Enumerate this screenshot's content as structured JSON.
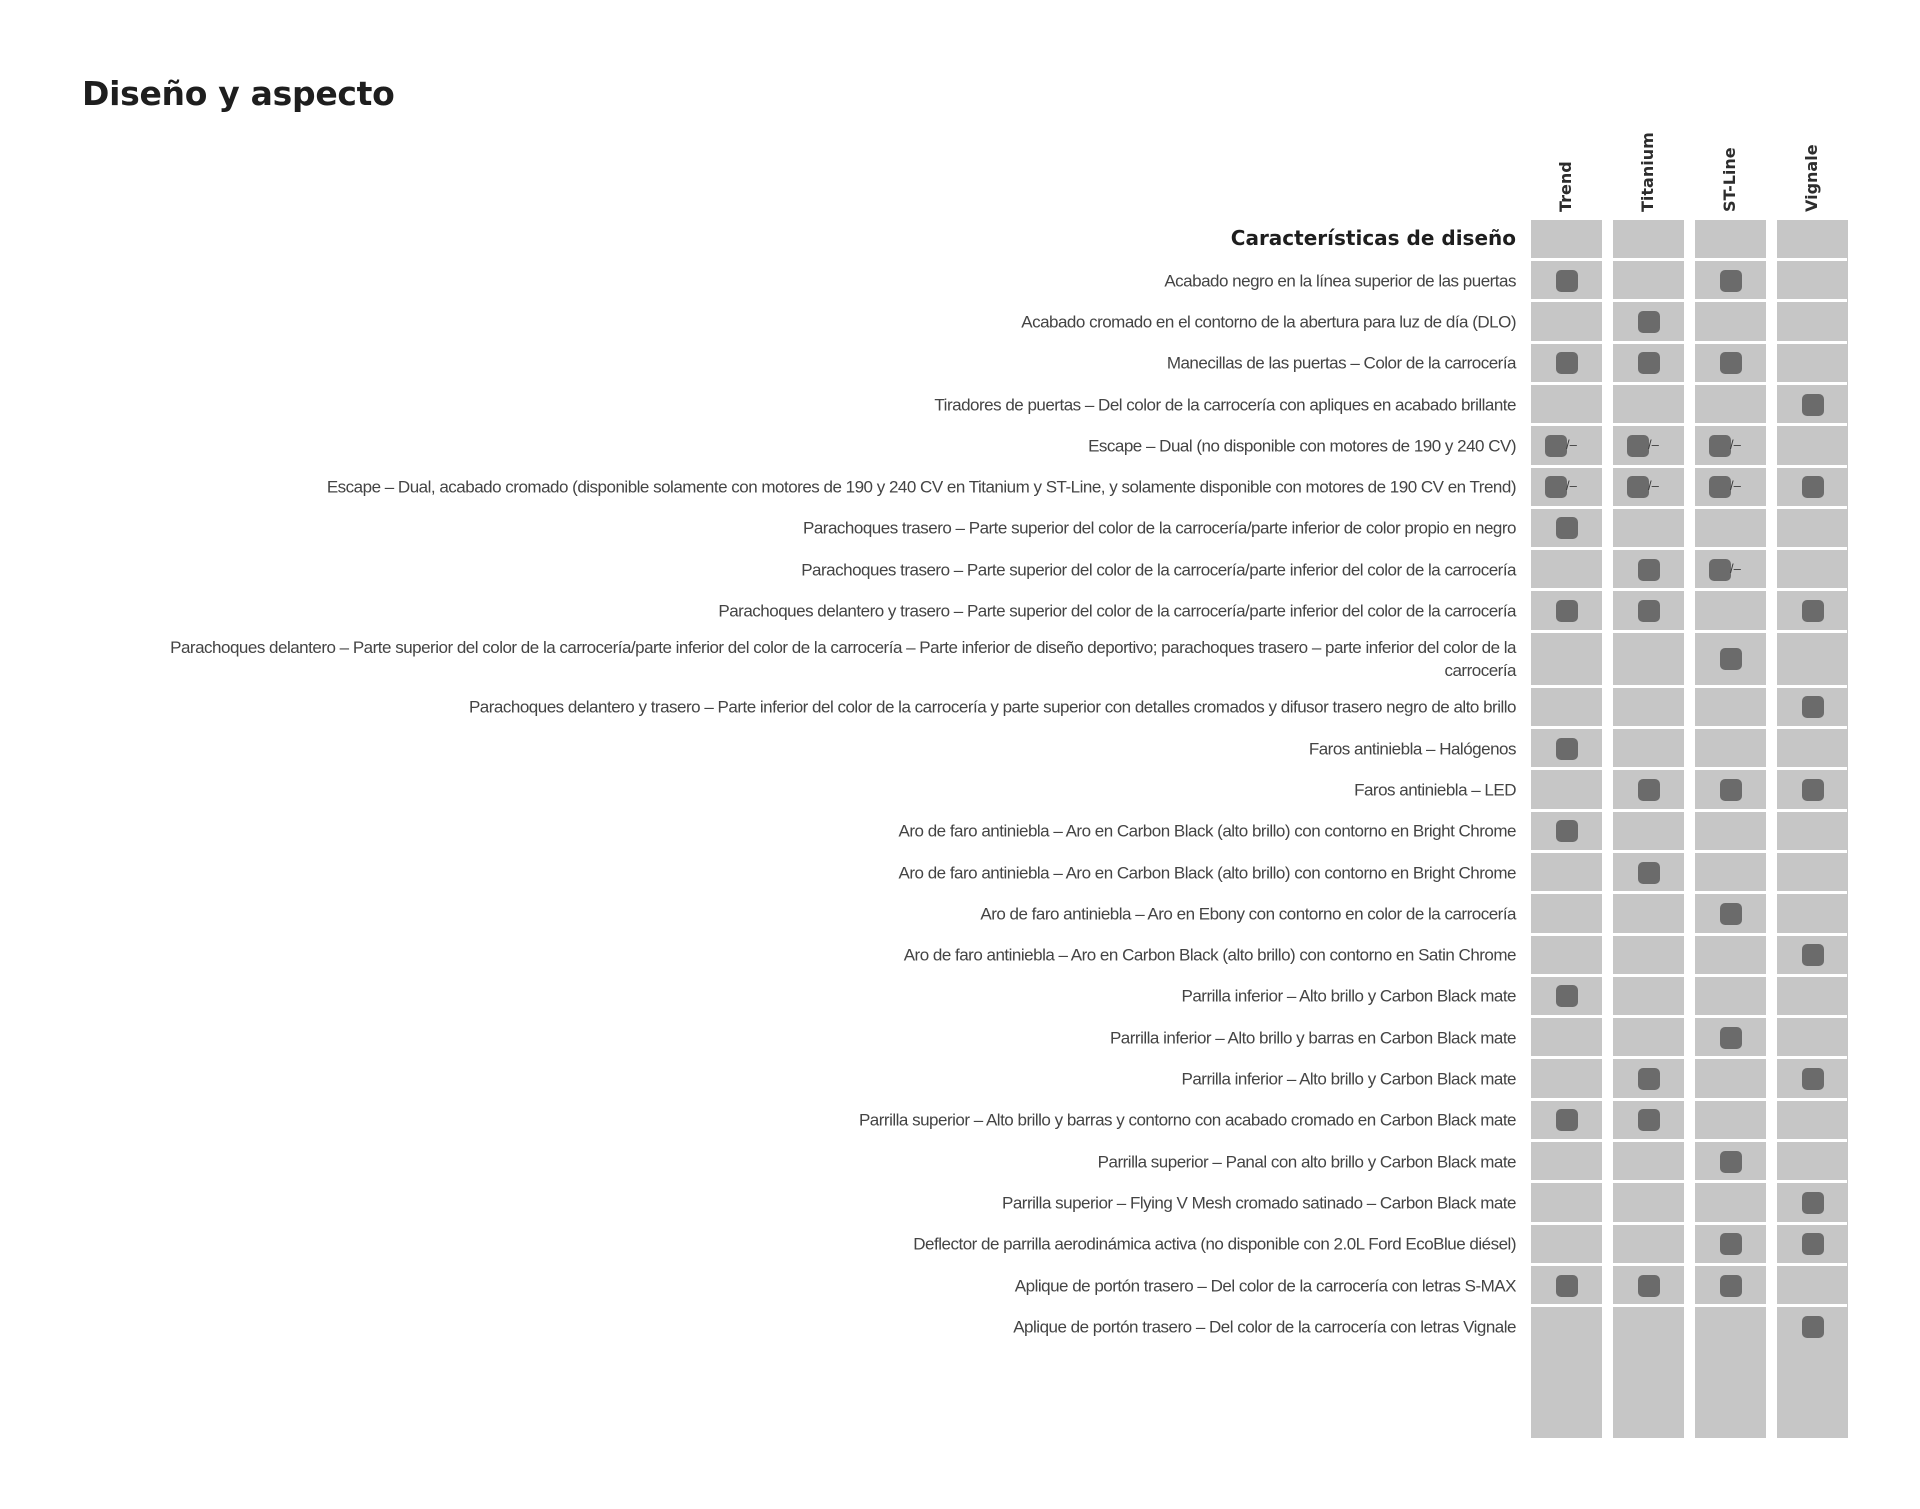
{
  "page": {
    "title": "Diseño y aspecto"
  },
  "columns": [
    "Trend",
    "Titanium",
    "ST-Line",
    "Vignale"
  ],
  "section": {
    "title": "Características de diseño"
  },
  "colors": {
    "column_background": "#c6c6c6",
    "mark": "#6b6b6b"
  },
  "rows": [
    {
      "label": "Acabado negro en la línea superior de las puertas",
      "marks": [
        "std",
        "",
        "std",
        ""
      ]
    },
    {
      "label": "Acabado cromado en el contorno de la abertura para luz de día (DLO)",
      "marks": [
        "",
        "std",
        "",
        ""
      ]
    },
    {
      "label": "Manecillas de las puertas – Color de la carrocería",
      "marks": [
        "std",
        "std",
        "std",
        ""
      ]
    },
    {
      "label": "Tiradores de puertas – Del color de la carrocería con apliques en acabado brillante",
      "marks": [
        "",
        "",
        "",
        "std"
      ]
    },
    {
      "label": "Escape – Dual (no disponible con motores de 190 y 240 CV)",
      "marks": [
        "std/–",
        "std/–",
        "std/–",
        ""
      ]
    },
    {
      "label": "Escape – Dual, acabado cromado (disponible solamente con motores de 190 y 240 CV en Titanium y ST-Line, y solamente disponible con motores de 190 CV en Trend)",
      "marks": [
        "std/–",
        "std/–",
        "std/–",
        "std"
      ]
    },
    {
      "label": "Parachoques trasero – Parte superior del color de la carrocería/parte inferior de color propio en negro",
      "marks": [
        "std",
        "",
        "",
        ""
      ]
    },
    {
      "label": "Parachoques trasero – Parte superior del color de la carrocería/parte inferior del color de la carrocería",
      "marks": [
        "",
        "std",
        "std/–",
        ""
      ]
    },
    {
      "label": "Parachoques delantero y trasero – Parte superior del color de la carrocería/parte inferior del color de la carrocería",
      "marks": [
        "std",
        "std",
        "",
        "std"
      ]
    },
    {
      "label": "Parachoques delantero – Parte superior del color de la carrocería/parte inferior del color de la carrocería – Parte inferior de diseño deportivo; parachoques trasero – parte inferior del color de la carrocería",
      "marks": [
        "",
        "",
        "std",
        ""
      ],
      "tall": true
    },
    {
      "label": "Parachoques delantero y trasero – Parte inferior del color de la carrocería y parte superior con detalles cromados y difusor trasero negro de alto brillo",
      "marks": [
        "",
        "",
        "",
        "std"
      ]
    },
    {
      "label": "Faros antiniebla – Halógenos",
      "marks": [
        "std",
        "",
        "",
        ""
      ]
    },
    {
      "label": "Faros antiniebla – LED",
      "marks": [
        "",
        "std",
        "std",
        "std"
      ]
    },
    {
      "label": "Aro de faro antiniebla – Aro en Carbon Black (alto brillo) con contorno en Bright Chrome",
      "marks": [
        "std",
        "",
        "",
        ""
      ]
    },
    {
      "label": "Aro de faro antiniebla – Aro en Carbon Black (alto brillo) con contorno en Bright Chrome",
      "marks": [
        "",
        "std",
        "",
        ""
      ]
    },
    {
      "label": "Aro de faro antiniebla – Aro en Ebony con contorno en color de la carrocería",
      "marks": [
        "",
        "",
        "std",
        ""
      ]
    },
    {
      "label": "Aro de faro antiniebla – Aro en Carbon Black (alto brillo) con contorno en Satin Chrome",
      "marks": [
        "",
        "",
        "",
        "std"
      ]
    },
    {
      "label": "Parrilla inferior – Alto brillo y Carbon Black mate",
      "marks": [
        "std",
        "",
        "",
        ""
      ]
    },
    {
      "label": "Parrilla inferior – Alto brillo y barras en Carbon Black mate",
      "marks": [
        "",
        "",
        "std",
        ""
      ]
    },
    {
      "label": "Parrilla inferior – Alto brillo y Carbon Black mate",
      "marks": [
        "",
        "std",
        "",
        "std"
      ]
    },
    {
      "label": "Parrilla superior – Alto brillo y barras y contorno con acabado cromado en Carbon Black mate",
      "marks": [
        "std",
        "std",
        "",
        ""
      ]
    },
    {
      "label": "Parrilla superior – Panal con alto brillo y Carbon Black mate",
      "marks": [
        "",
        "",
        "std",
        ""
      ]
    },
    {
      "label": "Parrilla superior – Flying V Mesh cromado satinado – Carbon Black mate",
      "marks": [
        "",
        "",
        "",
        "std"
      ]
    },
    {
      "label": "Deflector de parrilla aerodinámica activa (no disponible con 2.0L Ford EcoBlue diésel)",
      "marks": [
        "",
        "",
        "std",
        "std"
      ]
    },
    {
      "label": "Aplique de portón trasero – Del color de la carrocería con letras S-MAX",
      "marks": [
        "std",
        "std",
        "std",
        ""
      ]
    },
    {
      "label": "Aplique de portón trasero – Del color de la carrocería con letras Vignale",
      "marks": [
        "",
        "",
        "",
        "std"
      ]
    }
  ]
}
